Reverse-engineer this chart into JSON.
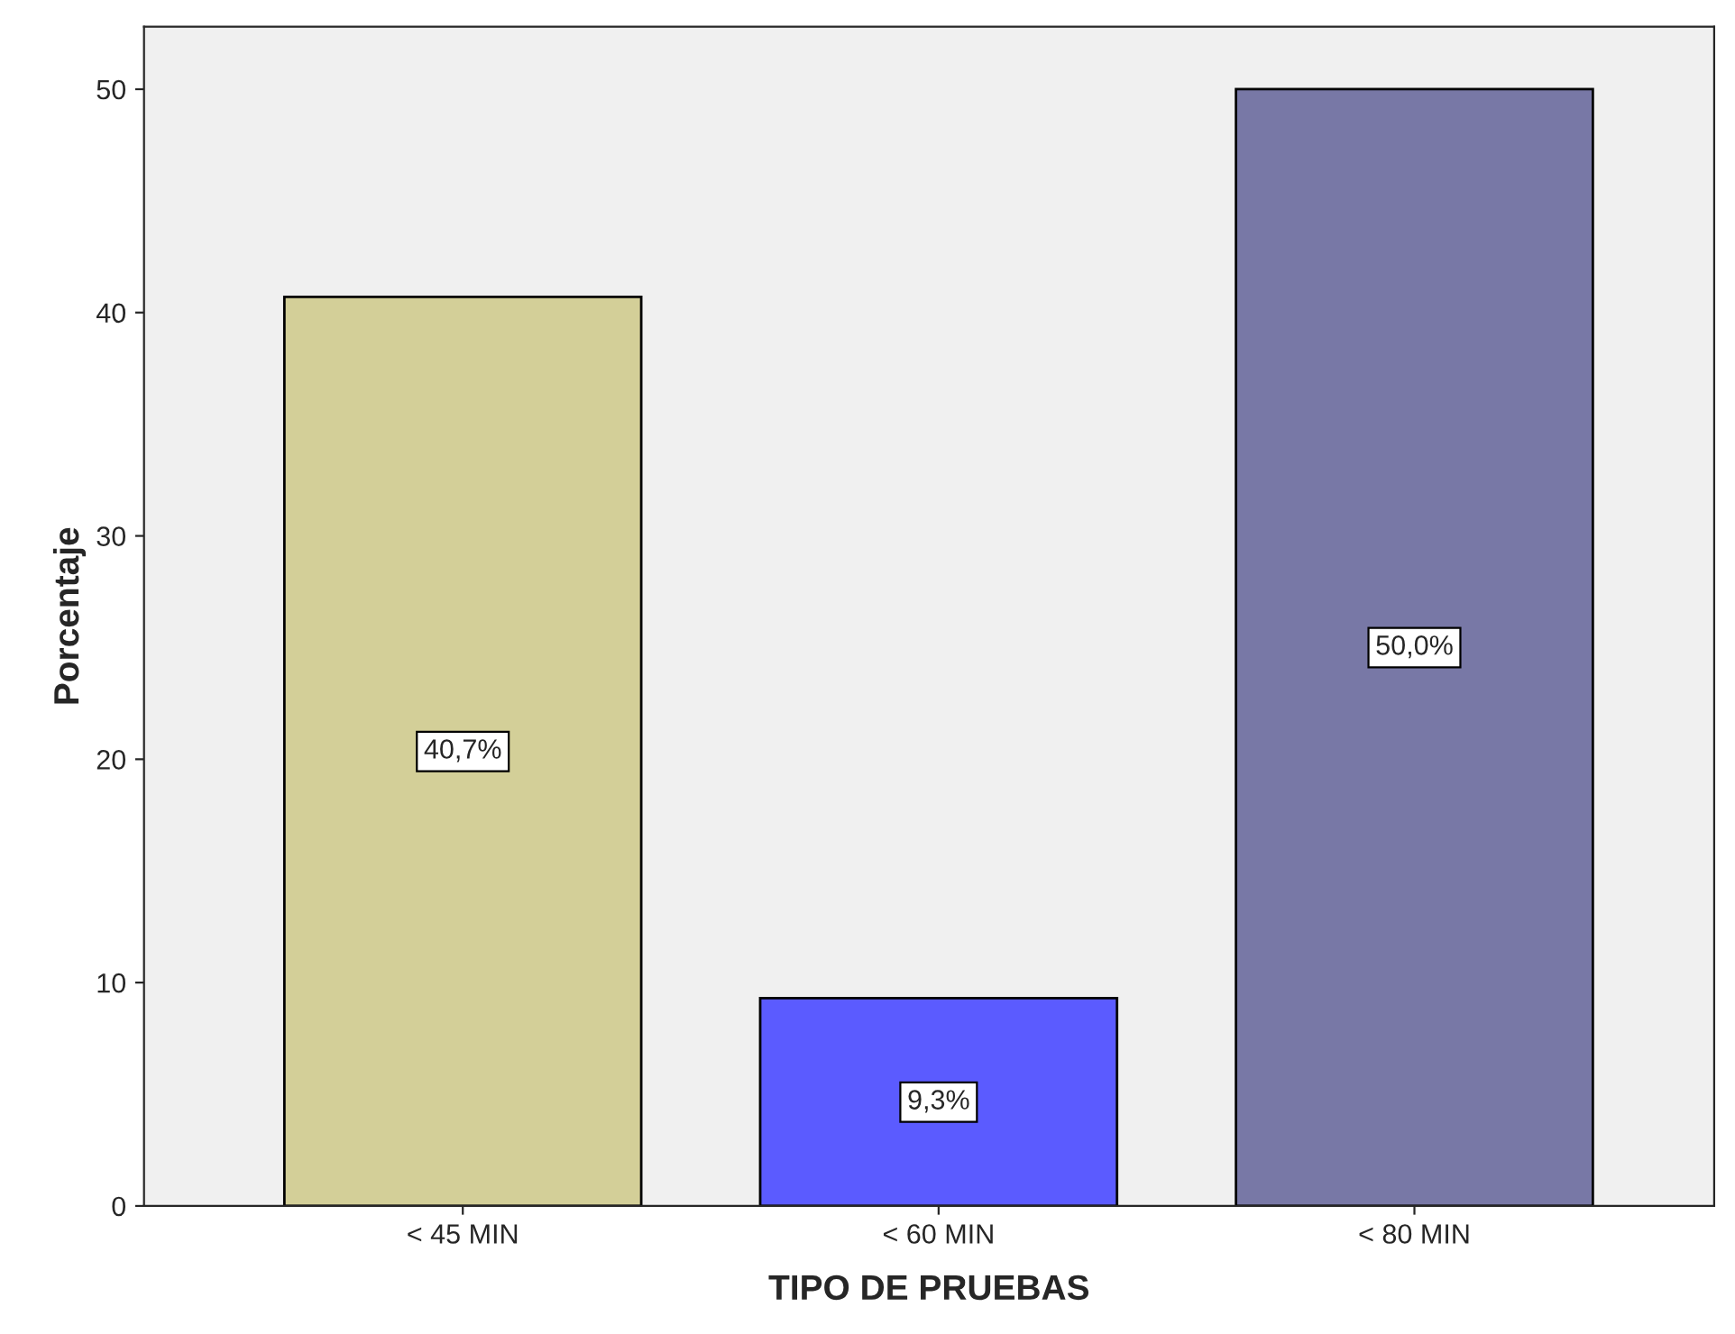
{
  "chart_data": {
    "type": "bar",
    "xlabel": "TIPO DE PRUEBAS",
    "ylabel": "Porcentaje",
    "categories": [
      "< 45 MIN",
      "< 60 MIN",
      "< 80 MIN"
    ],
    "values": [
      40.7,
      9.3,
      50.0
    ],
    "colors": [
      "#d3cf98",
      "#5b5bff",
      "#7878a6"
    ],
    "value_labels": [
      "40,7%",
      "9,3%",
      "50,0%"
    ],
    "ylim": [
      0,
      52.8
    ],
    "yticks": [
      0,
      10,
      20,
      30,
      40,
      50
    ],
    "grid": false,
    "legend": false
  }
}
